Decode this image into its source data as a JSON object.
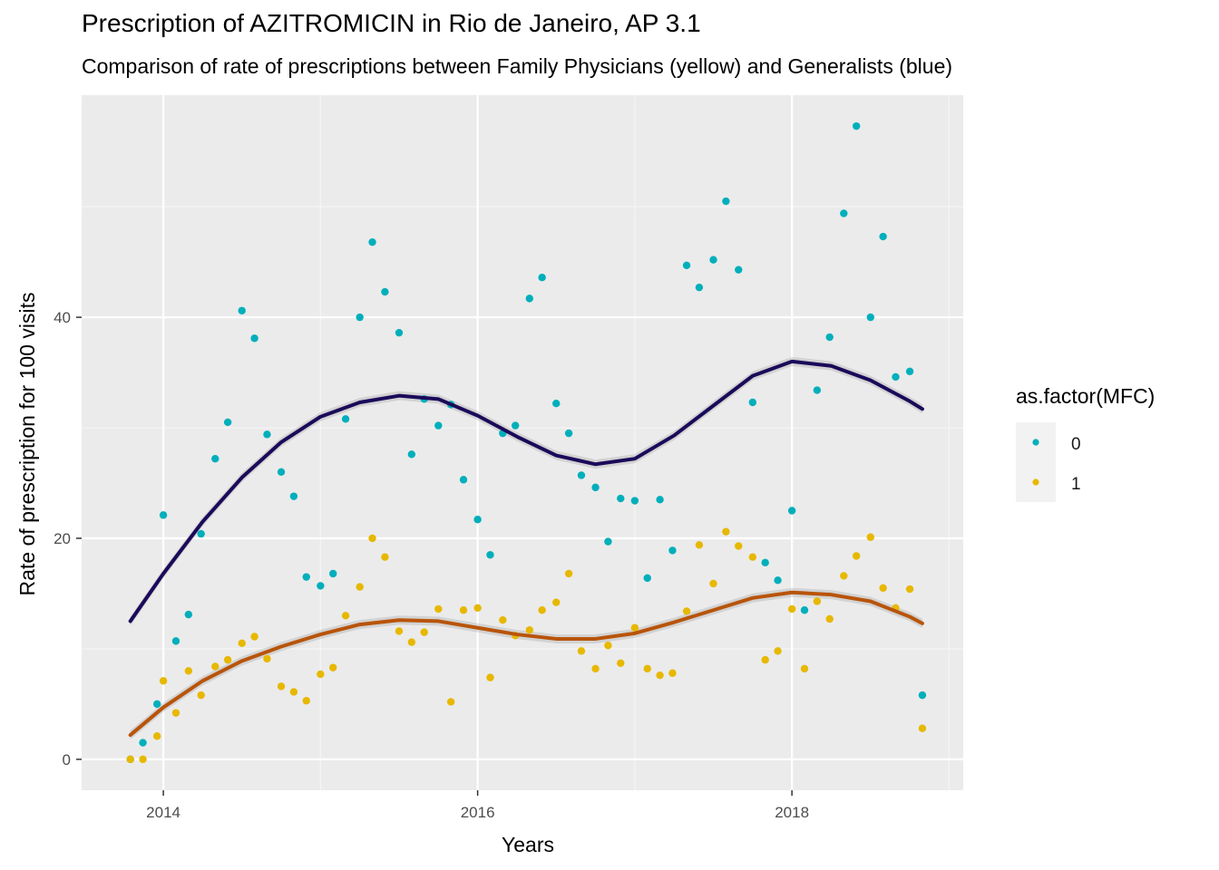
{
  "chart_data": {
    "type": "scatter",
    "title": "Prescription of AZITROMICIN in Rio de Janeiro, AP 3.1",
    "subtitle": "Comparison of rate of prescriptions between Family Physicians (yellow) and Generalists (blue)",
    "xlabel": "Years",
    "ylabel": "Rate of prescription for 100 visits",
    "x_ticks": [
      2014,
      2016,
      2018
    ],
    "y_ticks": [
      0,
      20,
      40
    ],
    "xlim": [
      2013.48,
      2019.09
    ],
    "ylim": [
      -2.8,
      60.1
    ],
    "grid": true,
    "legend": {
      "title": "as.factor(MFC)",
      "position": "right",
      "entries": [
        "0",
        "1"
      ]
    },
    "series": [
      {
        "name": "0",
        "color": "#00AFBB",
        "points": [
          [
            2013.79,
            0.0
          ],
          [
            2013.87,
            1.5
          ],
          [
            2013.96,
            5.0
          ],
          [
            2014.0,
            22.1
          ],
          [
            2014.08,
            10.7
          ],
          [
            2014.16,
            13.1
          ],
          [
            2014.24,
            20.4
          ],
          [
            2014.33,
            27.2
          ],
          [
            2014.41,
            30.5
          ],
          [
            2014.5,
            40.6
          ],
          [
            2014.58,
            38.1
          ],
          [
            2014.66,
            29.4
          ],
          [
            2014.75,
            26.0
          ],
          [
            2014.83,
            23.8
          ],
          [
            2014.91,
            16.5
          ],
          [
            2015.0,
            15.7
          ],
          [
            2015.08,
            16.8
          ],
          [
            2015.16,
            30.8
          ],
          [
            2015.25,
            40.0
          ],
          [
            2015.33,
            46.8
          ],
          [
            2015.41,
            42.3
          ],
          [
            2015.5,
            38.6
          ],
          [
            2015.58,
            27.6
          ],
          [
            2015.66,
            32.6
          ],
          [
            2015.75,
            30.2
          ],
          [
            2015.83,
            32.1
          ],
          [
            2015.91,
            25.3
          ],
          [
            2016.0,
            21.7
          ],
          [
            2016.08,
            18.5
          ],
          [
            2016.16,
            29.5
          ],
          [
            2016.24,
            30.2
          ],
          [
            2016.33,
            41.7
          ],
          [
            2016.41,
            43.6
          ],
          [
            2016.5,
            32.2
          ],
          [
            2016.58,
            29.5
          ],
          [
            2016.66,
            25.7
          ],
          [
            2016.75,
            24.6
          ],
          [
            2016.83,
            19.7
          ],
          [
            2016.91,
            23.6
          ],
          [
            2017.0,
            23.4
          ],
          [
            2017.08,
            16.4
          ],
          [
            2017.16,
            23.5
          ],
          [
            2017.24,
            18.9
          ],
          [
            2017.33,
            44.7
          ],
          [
            2017.41,
            42.7
          ],
          [
            2017.5,
            45.2
          ],
          [
            2017.58,
            50.5
          ],
          [
            2017.66,
            44.3
          ],
          [
            2017.75,
            32.3
          ],
          [
            2017.83,
            17.8
          ],
          [
            2017.91,
            16.2
          ],
          [
            2018.0,
            22.5
          ],
          [
            2018.08,
            13.5
          ],
          [
            2018.16,
            33.4
          ],
          [
            2018.24,
            38.2
          ],
          [
            2018.33,
            49.4
          ],
          [
            2018.41,
            57.3
          ],
          [
            2018.5,
            40.0
          ],
          [
            2018.58,
            47.3
          ],
          [
            2018.66,
            34.6
          ],
          [
            2018.75,
            35.1
          ],
          [
            2018.83,
            5.8
          ]
        ],
        "smooth": [
          [
            2013.79,
            12.5
          ],
          [
            2014.0,
            16.8
          ],
          [
            2014.25,
            21.5
          ],
          [
            2014.5,
            25.5
          ],
          [
            2014.75,
            28.7
          ],
          [
            2015.0,
            31.0
          ],
          [
            2015.25,
            32.3
          ],
          [
            2015.5,
            32.9
          ],
          [
            2015.75,
            32.6
          ],
          [
            2016.0,
            31.1
          ],
          [
            2016.25,
            29.2
          ],
          [
            2016.5,
            27.5
          ],
          [
            2016.75,
            26.7
          ],
          [
            2017.0,
            27.2
          ],
          [
            2017.25,
            29.3
          ],
          [
            2017.5,
            32.0
          ],
          [
            2017.75,
            34.7
          ],
          [
            2018.0,
            36.0
          ],
          [
            2018.25,
            35.6
          ],
          [
            2018.5,
            34.3
          ],
          [
            2018.75,
            32.4
          ],
          [
            2018.83,
            31.7
          ]
        ],
        "smooth_color": "#1B0A5A"
      },
      {
        "name": "1",
        "color": "#E7B800",
        "points": [
          [
            2013.79,
            0.0
          ],
          [
            2013.87,
            0.0
          ],
          [
            2013.96,
            2.1
          ],
          [
            2014.0,
            7.1
          ],
          [
            2014.08,
            4.2
          ],
          [
            2014.16,
            8.0
          ],
          [
            2014.24,
            5.8
          ],
          [
            2014.33,
            8.4
          ],
          [
            2014.41,
            9.0
          ],
          [
            2014.5,
            10.5
          ],
          [
            2014.58,
            11.1
          ],
          [
            2014.66,
            9.1
          ],
          [
            2014.75,
            6.6
          ],
          [
            2014.83,
            6.1
          ],
          [
            2014.91,
            5.3
          ],
          [
            2015.0,
            7.7
          ],
          [
            2015.08,
            8.3
          ],
          [
            2015.16,
            13.0
          ],
          [
            2015.25,
            15.6
          ],
          [
            2015.33,
            20.0
          ],
          [
            2015.41,
            18.3
          ],
          [
            2015.5,
            11.6
          ],
          [
            2015.58,
            10.6
          ],
          [
            2015.66,
            11.5
          ],
          [
            2015.75,
            13.6
          ],
          [
            2015.83,
            5.2
          ],
          [
            2015.91,
            13.5
          ],
          [
            2016.0,
            13.7
          ],
          [
            2016.08,
            7.4
          ],
          [
            2016.16,
            12.6
          ],
          [
            2016.24,
            11.2
          ],
          [
            2016.33,
            11.7
          ],
          [
            2016.41,
            13.5
          ],
          [
            2016.5,
            14.2
          ],
          [
            2016.58,
            16.8
          ],
          [
            2016.66,
            9.8
          ],
          [
            2016.75,
            8.2
          ],
          [
            2016.83,
            10.3
          ],
          [
            2016.91,
            8.7
          ],
          [
            2017.0,
            11.9
          ],
          [
            2017.08,
            8.2
          ],
          [
            2017.16,
            7.6
          ],
          [
            2017.24,
            7.8
          ],
          [
            2017.33,
            13.4
          ],
          [
            2017.41,
            19.4
          ],
          [
            2017.5,
            15.9
          ],
          [
            2017.58,
            20.6
          ],
          [
            2017.66,
            19.3
          ],
          [
            2017.75,
            18.3
          ],
          [
            2017.83,
            9.0
          ],
          [
            2017.91,
            9.8
          ],
          [
            2018.0,
            13.6
          ],
          [
            2018.08,
            8.2
          ],
          [
            2018.16,
            14.3
          ],
          [
            2018.24,
            12.7
          ],
          [
            2018.33,
            16.6
          ],
          [
            2018.41,
            18.4
          ],
          [
            2018.5,
            20.1
          ],
          [
            2018.58,
            15.5
          ],
          [
            2018.66,
            13.7
          ],
          [
            2018.75,
            15.4
          ],
          [
            2018.83,
            2.8
          ]
        ],
        "smooth": [
          [
            2013.79,
            2.2
          ],
          [
            2014.0,
            4.7
          ],
          [
            2014.25,
            7.1
          ],
          [
            2014.5,
            8.9
          ],
          [
            2014.75,
            10.2
          ],
          [
            2015.0,
            11.3
          ],
          [
            2015.25,
            12.2
          ],
          [
            2015.5,
            12.6
          ],
          [
            2015.75,
            12.5
          ],
          [
            2016.0,
            11.9
          ],
          [
            2016.25,
            11.3
          ],
          [
            2016.5,
            10.9
          ],
          [
            2016.75,
            10.9
          ],
          [
            2017.0,
            11.4
          ],
          [
            2017.25,
            12.4
          ],
          [
            2017.5,
            13.5
          ],
          [
            2017.75,
            14.6
          ],
          [
            2018.0,
            15.1
          ],
          [
            2018.25,
            14.9
          ],
          [
            2018.5,
            14.3
          ],
          [
            2018.75,
            12.9
          ],
          [
            2018.83,
            12.3
          ]
        ],
        "smooth_color": "#B8540A"
      }
    ]
  }
}
